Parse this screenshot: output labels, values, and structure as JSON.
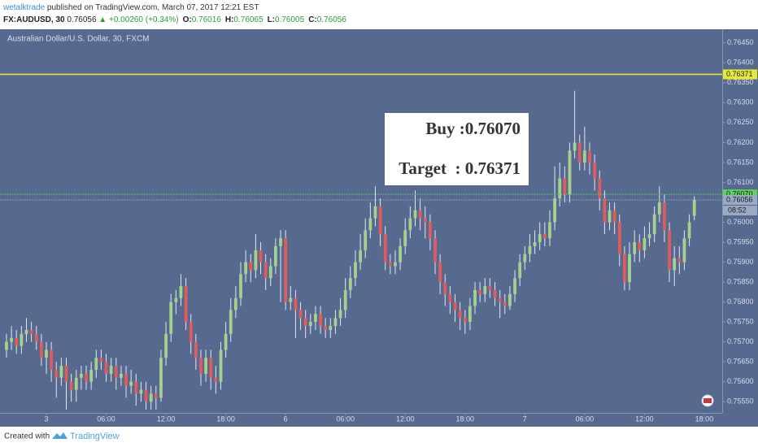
{
  "header": {
    "author": "wetalktrade",
    "published": "published on TradingView.com, March 07, 2017 12:21 EST",
    "symbol": "FX:AUDUSD, 30",
    "last": "0.76056",
    "change": "▲ +0.00260 (+0.34%)",
    "ohlc": [
      {
        "key": "O:",
        "value": "0.76016"
      },
      {
        "key": "H:",
        "value": "0.76065"
      },
      {
        "key": "L:",
        "value": "0.76005"
      },
      {
        "key": "C:",
        "value": "0.76056"
      }
    ]
  },
  "chart_data": {
    "type": "candlestick",
    "title": "Australian Dollar/U.S. Dollar, 30, FXCM",
    "up_color": "#a5d18f",
    "down_color": "#e05c5c",
    "ylim": [
      0.7552,
      0.7648
    ],
    "xlim": [
      -1.3,
      143.6
    ],
    "yticks": [
      {
        "value": 0.7555,
        "label": "0.75550"
      },
      {
        "value": 0.756,
        "label": "0.75600"
      },
      {
        "value": 0.7565,
        "label": "0.75650"
      },
      {
        "value": 0.757,
        "label": "0.75700"
      },
      {
        "value": 0.7575,
        "label": "0.75750"
      },
      {
        "value": 0.758,
        "label": "0.75800"
      },
      {
        "value": 0.7585,
        "label": "0.75850"
      },
      {
        "value": 0.759,
        "label": "0.75900"
      },
      {
        "value": 0.7595,
        "label": "0.75950"
      },
      {
        "value": 0.76,
        "label": "0.76000"
      },
      {
        "value": 0.761,
        "label": "0.76100"
      },
      {
        "value": 0.7615,
        "label": "0.76150"
      },
      {
        "value": 0.762,
        "label": "0.76200"
      },
      {
        "value": 0.7625,
        "label": "0.76250"
      },
      {
        "value": 0.763,
        "label": "0.76300"
      },
      {
        "value": 0.7635,
        "label": "0.76350"
      },
      {
        "value": 0.764,
        "label": "0.76400"
      },
      {
        "value": 0.7645,
        "label": "0.76450"
      }
    ],
    "xticks": [
      {
        "value": 8,
        "label": "3"
      },
      {
        "value": 20,
        "label": "06:00"
      },
      {
        "value": 32,
        "label": "12:00"
      },
      {
        "value": 44,
        "label": "18:00"
      },
      {
        "value": 56,
        "label": "6"
      },
      {
        "value": 68,
        "label": "06:00"
      },
      {
        "value": 80,
        "label": "12:00"
      },
      {
        "value": 92,
        "label": "18:00"
      },
      {
        "value": 104,
        "label": "7"
      },
      {
        "value": 116,
        "label": "06:00"
      },
      {
        "value": 128,
        "label": "12:00"
      },
      {
        "value": 140,
        "label": "18:00"
      }
    ],
    "levels": [
      {
        "value": 0.76371,
        "color": "#e8e83a",
        "style": "solid"
      },
      {
        "value": 0.7607,
        "label": "0.76070",
        "color": "#5fd35f",
        "style": "dotted"
      },
      {
        "value": 0.76056,
        "color": "#9aa9c4",
        "style": "dotted",
        "countdown": "08:52"
      }
    ],
    "annotation": [
      "Buy :0.76070",
      "Target  : 0.76371"
    ],
    "candles": [
      [
        0.7568,
        0.7572,
        0.7566,
        0.757
      ],
      [
        0.757,
        0.7574,
        0.7568,
        0.7571
      ],
      [
        0.7571,
        0.7573,
        0.7567,
        0.7569
      ],
      [
        0.7569,
        0.7574,
        0.7567,
        0.7572
      ],
      [
        0.7572,
        0.7576,
        0.757,
        0.7573
      ],
      [
        0.7573,
        0.7575,
        0.757,
        0.7572
      ],
      [
        0.7572,
        0.7574,
        0.7568,
        0.757
      ],
      [
        0.757,
        0.7572,
        0.7564,
        0.7566
      ],
      [
        0.7566,
        0.757,
        0.7562,
        0.7568
      ],
      [
        0.7568,
        0.757,
        0.756,
        0.7563
      ],
      [
        0.7563,
        0.7565,
        0.7556,
        0.7561
      ],
      [
        0.7561,
        0.7566,
        0.7559,
        0.7564
      ],
      [
        0.7564,
        0.7566,
        0.7553,
        0.756
      ],
      [
        0.756,
        0.7562,
        0.7555,
        0.7558
      ],
      [
        0.7558,
        0.7563,
        0.7555,
        0.7561
      ],
      [
        0.7561,
        0.7564,
        0.7558,
        0.7562
      ],
      [
        0.7562,
        0.7564,
        0.7558,
        0.756
      ],
      [
        0.756,
        0.7565,
        0.7558,
        0.7563
      ],
      [
        0.7563,
        0.7568,
        0.7561,
        0.7566
      ],
      [
        0.7566,
        0.7568,
        0.7563,
        0.7565
      ],
      [
        0.7565,
        0.7567,
        0.756,
        0.7562
      ],
      [
        0.7562,
        0.7566,
        0.756,
        0.7564
      ],
      [
        0.7564,
        0.7566,
        0.7558,
        0.7561
      ],
      [
        0.7561,
        0.7564,
        0.7559,
        0.7562
      ],
      [
        0.7562,
        0.7564,
        0.7556,
        0.7559
      ],
      [
        0.7559,
        0.7563,
        0.7557,
        0.756
      ],
      [
        0.756,
        0.7562,
        0.7554,
        0.7557
      ],
      [
        0.7557,
        0.756,
        0.7555,
        0.7558
      ],
      [
        0.7558,
        0.756,
        0.7553,
        0.7555
      ],
      [
        0.7555,
        0.7559,
        0.7553,
        0.7557
      ],
      [
        0.7557,
        0.7559,
        0.7553,
        0.7556
      ],
      [
        0.7556,
        0.7568,
        0.7555,
        0.7566
      ],
      [
        0.7566,
        0.7575,
        0.7564,
        0.7572
      ],
      [
        0.7572,
        0.7582,
        0.757,
        0.758
      ],
      [
        0.758,
        0.7583,
        0.7577,
        0.7581
      ],
      [
        0.7581,
        0.7587,
        0.7579,
        0.7584
      ],
      [
        0.7584,
        0.7586,
        0.7573,
        0.7575
      ],
      [
        0.7575,
        0.7577,
        0.7567,
        0.757
      ],
      [
        0.757,
        0.7572,
        0.7563,
        0.7566
      ],
      [
        0.7566,
        0.7568,
        0.7559,
        0.7562
      ],
      [
        0.7562,
        0.7568,
        0.756,
        0.7566
      ],
      [
        0.7566,
        0.7568,
        0.7558,
        0.7561
      ],
      [
        0.7561,
        0.7564,
        0.7557,
        0.756
      ],
      [
        0.756,
        0.757,
        0.7558,
        0.7568
      ],
      [
        0.7568,
        0.7575,
        0.7566,
        0.7572
      ],
      [
        0.7572,
        0.7581,
        0.757,
        0.7578
      ],
      [
        0.7578,
        0.7584,
        0.7576,
        0.7581
      ],
      [
        0.7581,
        0.759,
        0.7579,
        0.7587
      ],
      [
        0.7587,
        0.7593,
        0.7585,
        0.759
      ],
      [
        0.759,
        0.7592,
        0.7585,
        0.7588
      ],
      [
        0.7588,
        0.7597,
        0.7586,
        0.7593
      ],
      [
        0.7593,
        0.7595,
        0.7587,
        0.759
      ],
      [
        0.759,
        0.7592,
        0.7583,
        0.7586
      ],
      [
        0.7586,
        0.7591,
        0.7584,
        0.7589
      ],
      [
        0.7589,
        0.7596,
        0.7587,
        0.7594
      ],
      [
        0.7594,
        0.7598,
        0.758,
        0.7596
      ],
      [
        0.7596,
        0.7598,
        0.7578,
        0.758
      ],
      [
        0.758,
        0.7584,
        0.7578,
        0.7581
      ],
      [
        0.7581,
        0.7583,
        0.7571,
        0.7578
      ],
      [
        0.7578,
        0.758,
        0.7573,
        0.7576
      ],
      [
        0.7576,
        0.7578,
        0.7571,
        0.7574
      ],
      [
        0.7574,
        0.7577,
        0.7572,
        0.7575
      ],
      [
        0.7575,
        0.7579,
        0.7573,
        0.7577
      ],
      [
        0.7577,
        0.7579,
        0.7572,
        0.7574
      ],
      [
        0.7574,
        0.7576,
        0.7571,
        0.7573
      ],
      [
        0.7573,
        0.7576,
        0.7571,
        0.7574
      ],
      [
        0.7574,
        0.7578,
        0.7572,
        0.7576
      ],
      [
        0.7576,
        0.7581,
        0.7574,
        0.7578
      ],
      [
        0.7578,
        0.7586,
        0.7576,
        0.7583
      ],
      [
        0.7583,
        0.7589,
        0.7581,
        0.7586
      ],
      [
        0.7586,
        0.7593,
        0.7584,
        0.759
      ],
      [
        0.759,
        0.7597,
        0.7588,
        0.7593
      ],
      [
        0.7593,
        0.7601,
        0.7591,
        0.7598
      ],
      [
        0.7598,
        0.7605,
        0.7596,
        0.7601
      ],
      [
        0.7601,
        0.7609,
        0.7599,
        0.7604
      ],
      [
        0.7604,
        0.7606,
        0.7594,
        0.7597
      ],
      [
        0.7597,
        0.7599,
        0.7588,
        0.759
      ],
      [
        0.759,
        0.7592,
        0.7587,
        0.7589
      ],
      [
        0.7589,
        0.7593,
        0.7587,
        0.759
      ],
      [
        0.759,
        0.7596,
        0.7588,
        0.7594
      ],
      [
        0.7594,
        0.7601,
        0.7592,
        0.7598
      ],
      [
        0.7598,
        0.7604,
        0.7596,
        0.7601
      ],
      [
        0.7601,
        0.7608,
        0.7599,
        0.7603
      ],
      [
        0.7603,
        0.7606,
        0.7598,
        0.7601
      ],
      [
        0.7601,
        0.7604,
        0.7596,
        0.76
      ],
      [
        0.76,
        0.7602,
        0.7593,
        0.7596
      ],
      [
        0.7596,
        0.7598,
        0.7587,
        0.759
      ],
      [
        0.759,
        0.7592,
        0.7582,
        0.7585
      ],
      [
        0.7585,
        0.7587,
        0.7579,
        0.7582
      ],
      [
        0.7582,
        0.7584,
        0.7577,
        0.758
      ],
      [
        0.758,
        0.7582,
        0.7575,
        0.7578
      ],
      [
        0.7578,
        0.758,
        0.7573,
        0.7576
      ],
      [
        0.7576,
        0.7578,
        0.7572,
        0.7575
      ],
      [
        0.7575,
        0.7581,
        0.7573,
        0.7579
      ],
      [
        0.7579,
        0.7585,
        0.7577,
        0.7583
      ],
      [
        0.7583,
        0.7585,
        0.758,
        0.7582
      ],
      [
        0.7582,
        0.7586,
        0.758,
        0.7584
      ],
      [
        0.7584,
        0.7586,
        0.7581,
        0.7583
      ],
      [
        0.7583,
        0.7585,
        0.7579,
        0.7581
      ],
      [
        0.7581,
        0.7583,
        0.7576,
        0.758
      ],
      [
        0.758,
        0.7582,
        0.7577,
        0.7579
      ],
      [
        0.7579,
        0.7584,
        0.7578,
        0.7582
      ],
      [
        0.7582,
        0.7588,
        0.758,
        0.7586
      ],
      [
        0.7586,
        0.7592,
        0.7584,
        0.759
      ],
      [
        0.759,
        0.7594,
        0.7588,
        0.7592
      ],
      [
        0.7592,
        0.7597,
        0.759,
        0.7594
      ],
      [
        0.7594,
        0.7598,
        0.7592,
        0.7595
      ],
      [
        0.7595,
        0.76,
        0.7593,
        0.7597
      ],
      [
        0.7597,
        0.76,
        0.7594,
        0.7596
      ],
      [
        0.7596,
        0.7603,
        0.7594,
        0.76
      ],
      [
        0.76,
        0.7614,
        0.7598,
        0.7606
      ],
      [
        0.7606,
        0.7615,
        0.7604,
        0.7611
      ],
      [
        0.7611,
        0.7614,
        0.7605,
        0.7607
      ],
      [
        0.7607,
        0.762,
        0.7605,
        0.7618
      ],
      [
        0.7618,
        0.7633,
        0.7616,
        0.762
      ],
      [
        0.762,
        0.7622,
        0.7613,
        0.7615
      ],
      [
        0.7615,
        0.7624,
        0.7613,
        0.7618
      ],
      [
        0.7618,
        0.762,
        0.7612,
        0.7615
      ],
      [
        0.7615,
        0.7617,
        0.7608,
        0.7611
      ],
      [
        0.7611,
        0.7613,
        0.7603,
        0.7606
      ],
      [
        0.7606,
        0.7608,
        0.7597,
        0.76
      ],
      [
        0.76,
        0.7605,
        0.7598,
        0.7603
      ],
      [
        0.7603,
        0.7605,
        0.7597,
        0.76
      ],
      [
        0.76,
        0.7602,
        0.7589,
        0.7592
      ],
      [
        0.7592,
        0.7594,
        0.7583,
        0.7585
      ],
      [
        0.7585,
        0.7595,
        0.7583,
        0.7592
      ],
      [
        0.7592,
        0.7598,
        0.759,
        0.7595
      ],
      [
        0.7595,
        0.7597,
        0.759,
        0.7593
      ],
      [
        0.7593,
        0.7599,
        0.7591,
        0.7596
      ],
      [
        0.7596,
        0.76,
        0.7594,
        0.7597
      ],
      [
        0.7597,
        0.7604,
        0.7595,
        0.7602
      ],
      [
        0.7602,
        0.7609,
        0.76,
        0.7605
      ],
      [
        0.7605,
        0.7607,
        0.7595,
        0.7598
      ],
      [
        0.7598,
        0.76,
        0.7585,
        0.7588
      ],
      [
        0.7588,
        0.7594,
        0.7584,
        0.7591
      ],
      [
        0.7591,
        0.7594,
        0.7587,
        0.759
      ],
      [
        0.759,
        0.7598,
        0.7588,
        0.7596
      ],
      [
        0.7596,
        0.7602,
        0.7594,
        0.76
      ],
      [
        0.76016,
        0.76065,
        0.76005,
        0.76056
      ]
    ]
  },
  "footer": {
    "created": "Created with",
    "brand": "TradingView"
  }
}
